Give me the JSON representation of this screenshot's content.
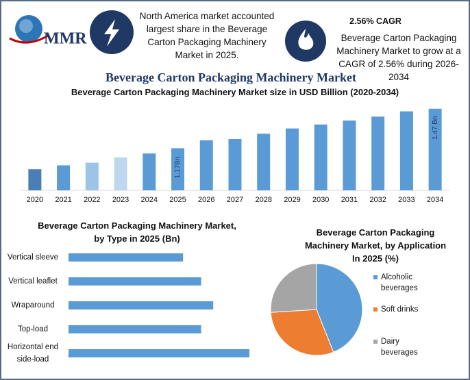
{
  "header": {
    "logo": "MMR",
    "highlight": "North America market accounted largest share in the Beverage Carton Packaging Machinery Market in 2025.",
    "cagr_title": "2.56% CAGR",
    "cagr_text": "Beverage Carton Packaging Machinery Market to grow at a CAGR of 2.56% during 2026-2034",
    "title": "Beverage Carton Packaging Machinery Market"
  },
  "chart_data": [
    {
      "type": "bar",
      "orientation": "vertical",
      "title": "Beverage Carton Packaging Machinery Market size in USD Billion (2020-2034)",
      "categories": [
        "2020",
        "2021",
        "2022",
        "2023",
        "2024",
        "2025",
        "2026",
        "2027",
        "2028",
        "2029",
        "2030",
        "2031",
        "2032",
        "2033",
        "2034"
      ],
      "values": [
        1.01,
        1.04,
        1.06,
        1.1,
        1.13,
        1.17,
        1.23,
        1.24,
        1.28,
        1.32,
        1.35,
        1.38,
        1.41,
        1.45,
        1.47
      ],
      "value_labels": [
        null,
        null,
        null,
        null,
        null,
        "1.17Bn",
        null,
        null,
        null,
        null,
        null,
        null,
        null,
        null,
        "1.47 Bn"
      ],
      "colors": [
        "#4a7fb5",
        "#5b9bd5",
        "#9dc3e6",
        "#bdd7ee",
        "#5b9bd5",
        "#5b9bd5",
        "#5b9bd5",
        "#5b9bd5",
        "#5b9bd5",
        "#5b9bd5",
        "#5b9bd5",
        "#5b9bd5",
        "#5b9bd5",
        "#5b9bd5",
        "#5b9bd5"
      ],
      "ylim": [
        0.85,
        1.5
      ]
    },
    {
      "type": "bar",
      "orientation": "horizontal",
      "title": [
        "Beverage Carton Packaging Machinery  Market,",
        "by Type in 2025 (Bn)"
      ],
      "categories": [
        "Vertical sleeve",
        "Vertical leaflet",
        "Wraparound",
        "Top-load",
        "Horizontal end side-load"
      ],
      "values": [
        0.19,
        0.22,
        0.24,
        0.22,
        0.3
      ],
      "color": "#5b9bd5",
      "xlim": [
        0,
        0.35
      ]
    },
    {
      "type": "pie",
      "title": "Beverage Carton Packaging Machinery Market, by Application In 2025 (%)",
      "categories": [
        "Alcoholic beverages",
        "Soft drinks",
        "Dairy beverages"
      ],
      "values": [
        44,
        30,
        26
      ],
      "colors": [
        "#5b9bd5",
        "#ed7d31",
        "#a5a5a5"
      ]
    }
  ]
}
